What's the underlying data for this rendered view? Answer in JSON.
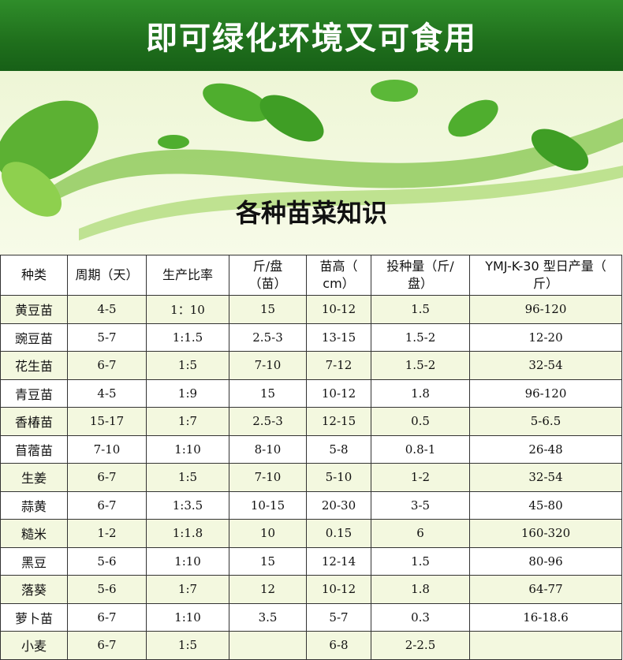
{
  "title": "即可绿化环境又可食用",
  "subtitle": "各种苗菜知识",
  "colors": {
    "banner": "#1f6f1c",
    "row_alt": "#f3f8df"
  },
  "table": {
    "headers": [
      "种类",
      "周期（天）",
      "生产比率",
      "斤/盘（苗）",
      "苗高（cm）",
      "投种量（斤/盘）",
      "YMJ-K-30 型日产量（斤）"
    ],
    "rows": [
      [
        "黄豆苗",
        "4-5",
        "1：10",
        "15",
        "10-12",
        "1.5",
        "96-120"
      ],
      [
        "豌豆苗",
        "5-7",
        "1:1.5",
        "2.5-3",
        "13-15",
        "1.5-2",
        "12-20"
      ],
      [
        "花生苗",
        "6-7",
        "1:5",
        "7-10",
        "7-12",
        "1.5-2",
        "32-54"
      ],
      [
        "青豆苗",
        "4-5",
        "1:9",
        "15",
        "10-12",
        "1.8",
        "96-120"
      ],
      [
        "香椿苗",
        "15-17",
        "1:7",
        "2.5-3",
        "12-15",
        "0.5",
        "5-6.5"
      ],
      [
        "苜蓿苗",
        "7-10",
        "1:10",
        "8-10",
        "5-8",
        "0.8-1",
        "26-48"
      ],
      [
        "生姜",
        "6-7",
        "1:5",
        "7-10",
        "5-10",
        "1-2",
        "32-54"
      ],
      [
        "蒜黄",
        "6-7",
        "1:3.5",
        "10-15",
        "20-30",
        "3-5",
        "45-80"
      ],
      [
        "糙米",
        "1-2",
        "1:1.8",
        "10",
        "0.15",
        "6",
        "160-320"
      ],
      [
        "黑豆",
        "5-6",
        "1:10",
        "15",
        "12-14",
        "1.5",
        "80-96"
      ],
      [
        "落葵",
        "5-6",
        "1:7",
        "12",
        "10-12",
        "1.8",
        "64-77"
      ],
      [
        "萝卜苗",
        "6-7",
        "1:10",
        "3.5",
        "5-7",
        "0.3",
        "16-18.6"
      ],
      [
        "小麦",
        "6-7",
        "1:5",
        "",
        "6-8",
        "2-2.5",
        ""
      ]
    ]
  }
}
